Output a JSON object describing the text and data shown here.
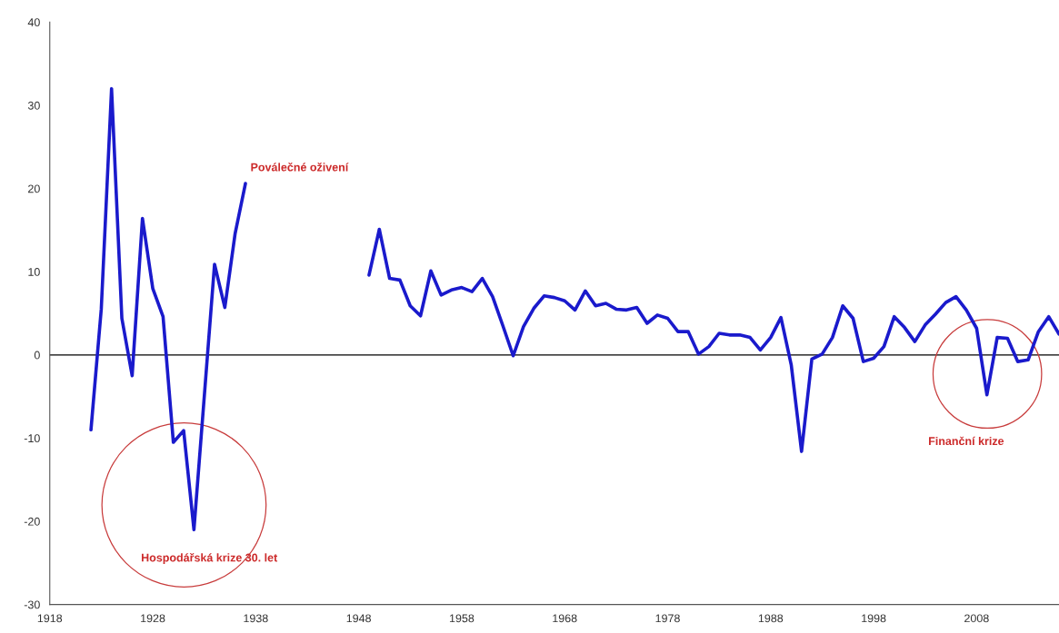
{
  "chart_data": {
    "type": "line",
    "x": [
      1922,
      1923,
      1924,
      1925,
      1926,
      1927,
      1928,
      1929,
      1930,
      1931,
      1932,
      1934,
      1935,
      1936,
      1937,
      1938,
      1949,
      1950,
      1951,
      1952,
      1953,
      1954,
      1955,
      1956,
      1957,
      1958,
      1959,
      1960,
      1961,
      1962,
      1963,
      1964,
      1965,
      1966,
      1967,
      1968,
      1969,
      1970,
      1971,
      1972,
      1973,
      1974,
      1975,
      1976,
      1977,
      1978,
      1979,
      1980,
      1981,
      1982,
      1983,
      1984,
      1985,
      1986,
      1987,
      1988,
      1989,
      1990,
      1991,
      1992,
      1993,
      1994,
      1995,
      1996,
      1997,
      1998,
      1999,
      2000,
      2001,
      2002,
      2003,
      2004,
      2005,
      2006,
      2007,
      2008,
      2009,
      2010,
      2011,
      2012,
      2013,
      2014,
      2015,
      2016
    ],
    "series": [
      {
        "color": "#1a1acc",
        "values": [
          -9,
          5.5,
          32,
          4.4,
          -2.5,
          16.4,
          8,
          4.6,
          -10.5,
          -9.1,
          -21,
          10.9,
          5.7,
          14.6,
          20.6,
          null,
          9.6,
          15.1,
          9.2,
          9.0,
          5.9,
          4.7,
          10.1,
          7.2,
          7.8,
          8.1,
          7.6,
          9.2,
          7.0,
          3.5,
          -0.1,
          3.4,
          5.6,
          7.1,
          6.9,
          6.5,
          5.4,
          7.7,
          5.9,
          6.2,
          5.5,
          5.4,
          5.7,
          3.8,
          4.8,
          4.4,
          2.8,
          2.8,
          0.1,
          1.0,
          2.6,
          2.4,
          2.4,
          2.1,
          0.6,
          2.1,
          4.5,
          -1.2,
          -11.6,
          -0.5,
          0.1,
          2.1,
          5.9,
          4.4,
          -0.8,
          -0.4,
          1.0,
          4.6,
          3.3,
          1.6,
          3.6,
          4.9,
          6.3,
          7.0,
          5.4,
          3.2,
          -4.8,
          2.1,
          2.0,
          -0.8,
          -0.6,
          2.8,
          4.6,
          2.5
        ]
      }
    ],
    "xlim": [
      1918,
      2016
    ],
    "xticks": [
      1918,
      1928,
      1938,
      1948,
      1958,
      1968,
      1978,
      1988,
      1998,
      2008
    ],
    "ylim": [
      -30,
      40
    ],
    "yticks": [
      -30,
      -20,
      -10,
      0,
      10,
      20,
      30,
      40
    ],
    "grid": false,
    "marker": "none",
    "line_style": "solid",
    "ref_lines": [
      {
        "axis": "y",
        "value": 0,
        "color": "#000000"
      }
    ],
    "annotations": [
      {
        "text": "Poválečné oživení",
        "x": 1937,
        "y": 20.6
      },
      "Hospodářská krize 30. let",
      "Finanční krize"
    ]
  }
}
